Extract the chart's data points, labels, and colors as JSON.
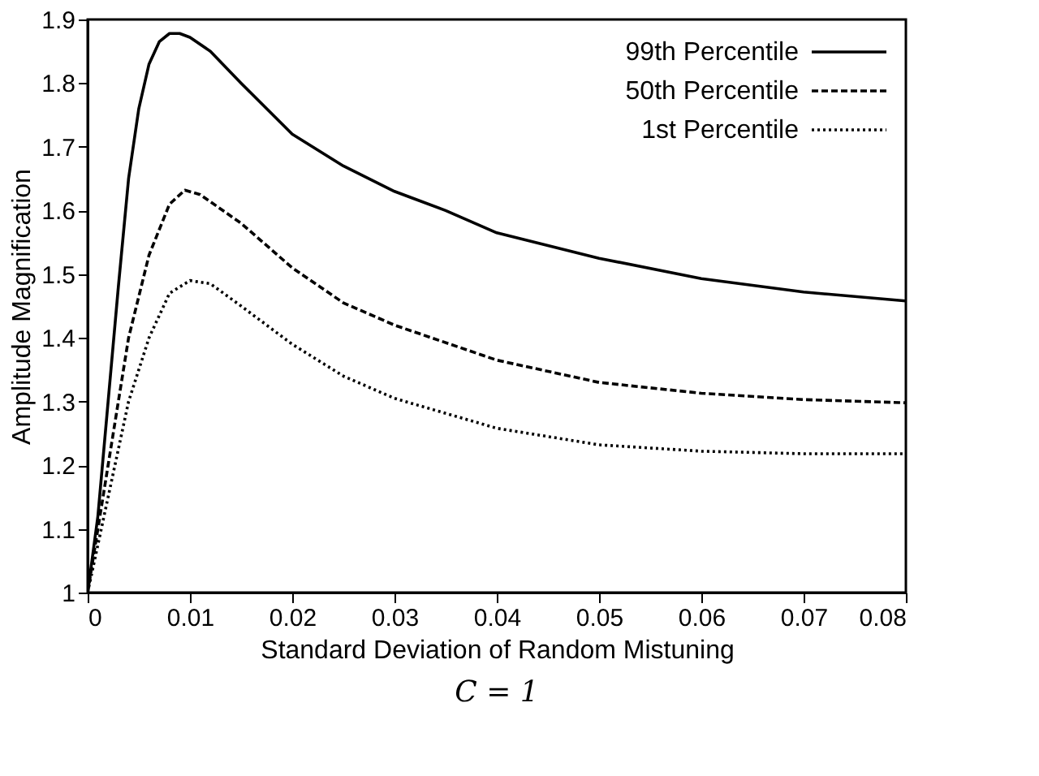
{
  "chart_data": {
    "type": "line",
    "xlabel": "Standard Deviation of Random Mistuning",
    "ylabel": "Amplitude Magnification",
    "annotations": [
      "C = 1"
    ],
    "xlim": [
      0,
      0.08
    ],
    "xticks": [
      0,
      0.01,
      0.02,
      0.03,
      0.04,
      0.05,
      0.06,
      0.07,
      0.08
    ],
    "ylim": [
      1,
      1.9
    ],
    "yticks": [
      1,
      1.1,
      1.2,
      1.3,
      1.4,
      1.5,
      1.6,
      1.7,
      1.8,
      1.9
    ],
    "grid": false,
    "legend": "top right",
    "marker": "none",
    "series": [
      {
        "name": "99th Percentile",
        "color": "#000000",
        "line_style": "solid",
        "x": [
          0,
          0.001,
          0.002,
          0.003,
          0.004,
          0.005,
          0.006,
          0.007,
          0.008,
          0.009,
          0.01,
          0.012,
          0.015,
          0.02,
          0.025,
          0.03,
          0.035,
          0.04,
          0.05,
          0.06,
          0.07,
          0.08
        ],
        "values": [
          1.0,
          1.12,
          1.3,
          1.48,
          1.65,
          1.76,
          1.83,
          1.865,
          1.878,
          1.878,
          1.872,
          1.85,
          1.8,
          1.72,
          1.67,
          1.63,
          1.6,
          1.565,
          1.525,
          1.493,
          1.472,
          1.458
        ]
      },
      {
        "name": "50th Percentile",
        "color": "#000000",
        "line_style": "dashed",
        "x": [
          0,
          0.002,
          0.004,
          0.006,
          0.008,
          0.0095,
          0.011,
          0.015,
          0.02,
          0.025,
          0.03,
          0.04,
          0.05,
          0.06,
          0.07,
          0.08
        ],
        "values": [
          1.0,
          1.2,
          1.4,
          1.53,
          1.61,
          1.632,
          1.625,
          1.58,
          1.51,
          1.455,
          1.42,
          1.365,
          1.33,
          1.313,
          1.303,
          1.298
        ]
      },
      {
        "name": "1st Percentile",
        "color": "#000000",
        "line_style": "dotted",
        "x": [
          0,
          0.002,
          0.004,
          0.006,
          0.008,
          0.01,
          0.012,
          0.015,
          0.02,
          0.025,
          0.03,
          0.04,
          0.05,
          0.06,
          0.07,
          0.08
        ],
        "values": [
          1.0,
          1.15,
          1.3,
          1.4,
          1.47,
          1.49,
          1.485,
          1.45,
          1.39,
          1.34,
          1.305,
          1.258,
          1.232,
          1.222,
          1.218,
          1.218
        ]
      }
    ]
  }
}
